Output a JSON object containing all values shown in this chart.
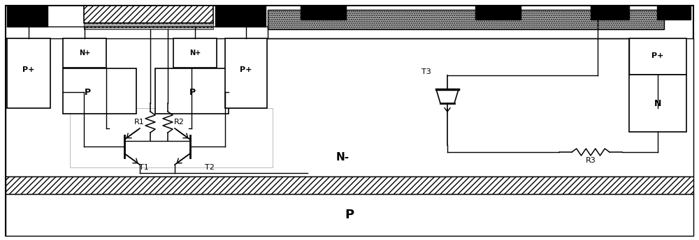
{
  "fig_width": 10.0,
  "fig_height": 3.44,
  "dpi": 100,
  "bg": "#ffffff",
  "labels": {
    "N+_left": "N+",
    "N+_right": "N+",
    "P_left": "P",
    "P_right": "P",
    "P+_far_left": "P+",
    "P+_mid_right": "P+",
    "P+_drain": "P+",
    "N_drain": "N",
    "N_minus": "N-",
    "P_sub": "P",
    "T1": "T1",
    "T2": "T2",
    "T3": "T3",
    "R1": "R1",
    "R2": "R2",
    "R3": "R3"
  }
}
